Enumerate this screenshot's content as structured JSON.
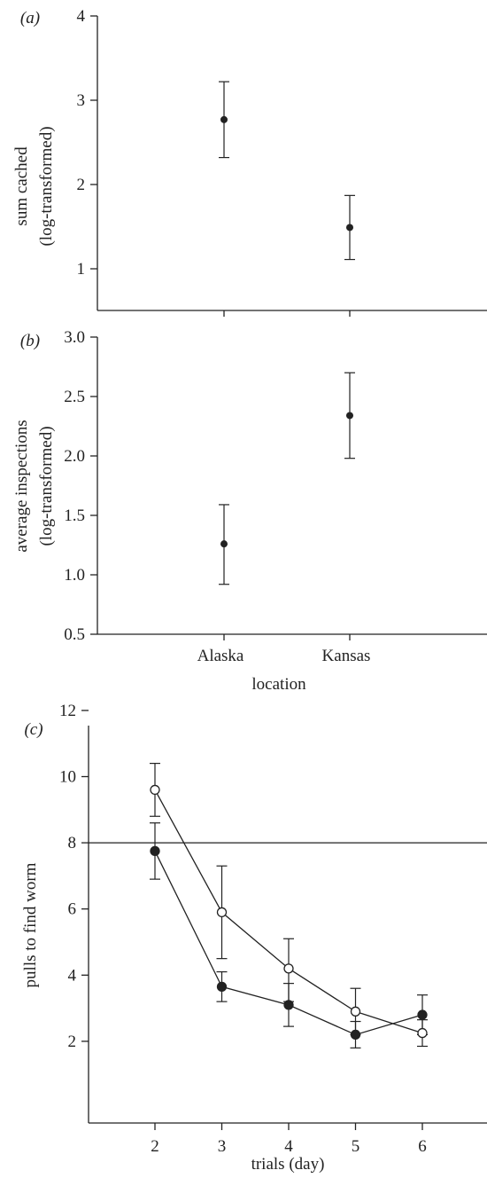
{
  "chart_data": [
    {
      "panel": "(a)",
      "type": "scatter",
      "ylabel": [
        "sum cached",
        "(log-transformed)"
      ],
      "ylim": [
        0.5,
        4
      ],
      "yticks": [
        1,
        2,
        3,
        4
      ],
      "xcategories": [
        "Alaska",
        "Kansas"
      ],
      "series": [
        {
          "points": [
            {
              "x": "Alaska",
              "y": 2.77,
              "lower": 2.32,
              "upper": 3.22
            },
            {
              "x": "Kansas",
              "y": 1.49,
              "lower": 1.11,
              "upper": 1.87
            }
          ]
        }
      ],
      "colors": {
        "marker": "#222222"
      }
    },
    {
      "panel": "(b)",
      "type": "scatter",
      "ylabel": [
        "average inspections",
        "(log-transformed)"
      ],
      "xlabel": "location",
      "ylim": [
        0.5,
        3.0
      ],
      "yticks": [
        0.5,
        1.0,
        1.5,
        2.0,
        2.5,
        3.0
      ],
      "ytick_labels": [
        "0.5",
        "1.0",
        "1.5",
        "2.0",
        "2.5",
        "3.0"
      ],
      "xcategories": [
        "Alaska",
        "Kansas"
      ],
      "series": [
        {
          "points": [
            {
              "x": "Alaska",
              "y": 1.26,
              "lower": 0.92,
              "upper": 1.59
            },
            {
              "x": "Kansas",
              "y": 2.34,
              "lower": 1.98,
              "upper": 2.7
            }
          ]
        }
      ],
      "colors": {
        "marker": "#222222"
      }
    },
    {
      "panel": "(c)",
      "type": "line",
      "ylabel": "pulls to find worm",
      "xlabel": "trials (day)",
      "xlim": [
        1,
        7
      ],
      "xticks": [
        2,
        3,
        4,
        5,
        6
      ],
      "ylim": [
        1,
        12
      ],
      "yticks": [
        2,
        4,
        6,
        8,
        10,
        12
      ],
      "reference_line_y": 8,
      "series": [
        {
          "marker": "open",
          "points": [
            {
              "x": 2,
              "y": 9.6,
              "lower": 8.8,
              "upper": 10.4
            },
            {
              "x": 3,
              "y": 5.9,
              "lower": 4.5,
              "upper": 7.3
            },
            {
              "x": 4,
              "y": 4.2,
              "lower": 3.2,
              "upper": 5.1
            },
            {
              "x": 5,
              "y": 2.9,
              "lower": 2.2,
              "upper": 3.6
            },
            {
              "x": 6,
              "y": 2.25,
              "lower": 1.85,
              "upper": 2.65
            }
          ]
        },
        {
          "marker": "filled",
          "points": [
            {
              "x": 2,
              "y": 7.75,
              "lower": 6.9,
              "upper": 8.6
            },
            {
              "x": 3,
              "y": 3.65,
              "lower": 3.2,
              "upper": 4.1
            },
            {
              "x": 4,
              "y": 3.1,
              "lower": 2.45,
              "upper": 3.75
            },
            {
              "x": 5,
              "y": 2.2,
              "lower": 1.8,
              "upper": 2.6
            },
            {
              "x": 6,
              "y": 2.8,
              "lower": 2.2,
              "upper": 3.4
            }
          ]
        }
      ],
      "colors": {
        "marker": "#222222",
        "open_fill": "#ffffff"
      }
    }
  ]
}
